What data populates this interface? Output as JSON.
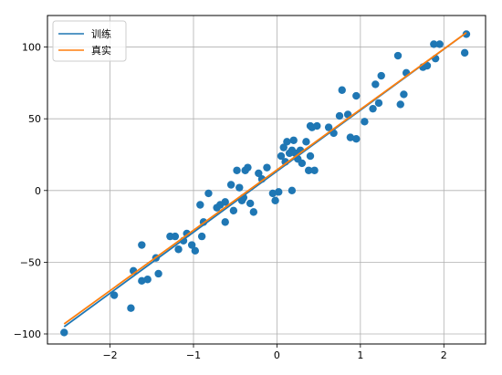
{
  "chart_data": {
    "type": "scatter",
    "title": "",
    "xlabel": "",
    "ylabel": "",
    "xlim": [
      -2.75,
      2.5
    ],
    "ylim": [
      -107,
      122
    ],
    "xticks": [
      -2,
      -1,
      0,
      1,
      2
    ],
    "yticks": [
      -100,
      -50,
      0,
      50,
      100
    ],
    "grid": true,
    "legend_position": "top-left",
    "colors": {
      "scatter": "#1f77b4",
      "train": "#1f77b4",
      "true": "#ff7f0e",
      "grid": "#b0b0b0"
    },
    "series": [
      {
        "name": "训练",
        "kind": "line",
        "x": [
          -2.55,
          2.27
        ],
        "y": [
          -95,
          110
        ]
      },
      {
        "name": "真实",
        "kind": "line",
        "x": [
          -2.55,
          2.27
        ],
        "y": [
          -93,
          110
        ]
      }
    ],
    "scatter": {
      "x": [
        -2.55,
        -1.95,
        -1.75,
        -1.72,
        -1.62,
        -1.55,
        -1.62,
        -1.45,
        -1.42,
        -1.28,
        -1.22,
        -1.18,
        -1.12,
        -1.08,
        -1.02,
        -0.98,
        -0.92,
        -0.9,
        -0.88,
        -0.82,
        -0.72,
        -0.68,
        -0.62,
        -0.62,
        -0.55,
        -0.52,
        -0.48,
        -0.45,
        -0.42,
        -0.4,
        -0.38,
        -0.35,
        -0.32,
        -0.28,
        -0.22,
        -0.18,
        -0.12,
        -0.05,
        -0.02,
        0.02,
        0.05,
        0.08,
        0.1,
        0.12,
        0.15,
        0.18,
        0.18,
        0.2,
        0.22,
        0.25,
        0.28,
        0.3,
        0.35,
        0.38,
        0.4,
        0.4,
        0.42,
        0.45,
        0.48,
        0.62,
        0.68,
        0.75,
        0.78,
        0.85,
        0.88,
        0.95,
        0.95,
        1.05,
        1.15,
        1.18,
        1.22,
        1.25,
        1.45,
        1.48,
        1.52,
        1.55,
        1.75,
        1.8,
        1.88,
        1.9,
        1.95,
        2.25,
        2.27
      ],
      "y": [
        -99,
        -73,
        -82,
        -56,
        -63,
        -62,
        -38,
        -47,
        -58,
        -32,
        -32,
        -41,
        -35,
        -30,
        -38,
        -42,
        -10,
        -32,
        -22,
        -2,
        -12,
        -10,
        -22,
        -8,
        4,
        -14,
        14,
        2,
        -7,
        -5,
        14,
        16,
        -9,
        -15,
        12,
        8,
        16,
        -2,
        -7,
        -1,
        24,
        30,
        20,
        34,
        26,
        0,
        28,
        35,
        26,
        22,
        28,
        19,
        34,
        14,
        24,
        45,
        44,
        14,
        45,
        44,
        40,
        52,
        70,
        53,
        37,
        36,
        66,
        48,
        57,
        74,
        61,
        80,
        94,
        60,
        67,
        82,
        86,
        87,
        102,
        92,
        102,
        96,
        109
      ]
    }
  }
}
